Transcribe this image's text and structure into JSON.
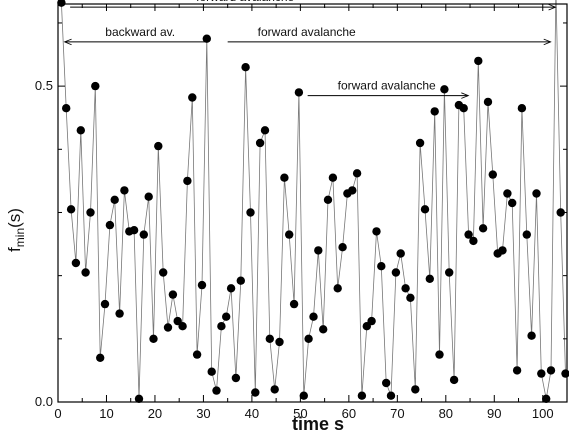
{
  "chart_data": {
    "type": "scatter",
    "connect_points": true,
    "xlabel": "time s",
    "ylabel_main": "f",
    "ylabel_sub": "min",
    "ylabel_rest": "(s)",
    "xlim": [
      0,
      105
    ],
    "ylim": [
      0.0,
      0.63
    ],
    "x_ticks": [
      0,
      10,
      20,
      30,
      40,
      50,
      60,
      70,
      80,
      90,
      100
    ],
    "x_tick_labels": [
      "0",
      "10",
      "20",
      "30",
      "40",
      "50",
      "60",
      "70",
      "80",
      "90",
      "100"
    ],
    "y_ticks": [
      0.0,
      0.5
    ],
    "y_tick_labels": [
      "0.0",
      "0.5"
    ],
    "grid": false,
    "series": [
      {
        "points": [
          [
            0.7,
            0.632
          ],
          [
            1.7,
            0.465
          ],
          [
            2.7,
            0.305
          ],
          [
            3.7,
            0.22
          ],
          [
            4.7,
            0.43
          ],
          [
            5.7,
            0.205
          ],
          [
            6.7,
            0.3
          ],
          [
            7.7,
            0.5
          ],
          [
            8.7,
            0.07
          ],
          [
            9.7,
            0.155
          ],
          [
            10.7,
            0.28
          ],
          [
            11.7,
            0.32
          ],
          [
            12.7,
            0.14
          ],
          [
            13.7,
            0.335
          ],
          [
            14.7,
            0.27
          ],
          [
            15.7,
            0.272
          ],
          [
            16.7,
            0.005
          ],
          [
            17.7,
            0.265
          ],
          [
            18.7,
            0.325
          ],
          [
            19.7,
            0.1
          ],
          [
            20.7,
            0.405
          ],
          [
            21.7,
            0.205
          ],
          [
            22.7,
            0.118
          ],
          [
            23.7,
            0.17
          ],
          [
            24.7,
            0.128
          ],
          [
            25.7,
            0.12
          ],
          [
            26.7,
            0.35
          ],
          [
            27.7,
            0.482
          ],
          [
            28.7,
            0.075
          ],
          [
            29.7,
            0.185
          ],
          [
            30.7,
            0.575
          ],
          [
            31.7,
            0.048
          ],
          [
            32.7,
            0.018
          ],
          [
            33.7,
            0.12
          ],
          [
            34.7,
            0.135
          ],
          [
            35.7,
            0.18
          ],
          [
            36.7,
            0.038
          ],
          [
            37.7,
            0.192
          ],
          [
            38.7,
            0.53
          ],
          [
            39.7,
            0.3
          ],
          [
            40.7,
            0.015
          ],
          [
            41.7,
            0.41
          ],
          [
            42.7,
            0.43
          ],
          [
            43.7,
            0.1
          ],
          [
            44.7,
            0.02
          ],
          [
            45.7,
            0.095
          ],
          [
            46.7,
            0.355
          ],
          [
            47.7,
            0.265
          ],
          [
            48.7,
            0.155
          ],
          [
            49.7,
            0.49
          ],
          [
            50.7,
            0.01
          ],
          [
            51.7,
            0.1
          ],
          [
            52.7,
            0.135
          ],
          [
            53.7,
            0.24
          ],
          [
            54.7,
            0.115
          ],
          [
            55.7,
            0.32
          ],
          [
            56.7,
            0.355
          ],
          [
            57.7,
            0.18
          ],
          [
            58.7,
            0.245
          ],
          [
            59.7,
            0.33
          ],
          [
            60.7,
            0.335
          ],
          [
            61.7,
            0.362
          ],
          [
            62.7,
            0.01
          ],
          [
            63.7,
            0.12
          ],
          [
            64.7,
            0.128
          ],
          [
            65.7,
            0.27
          ],
          [
            66.7,
            0.215
          ],
          [
            67.7,
            0.03
          ],
          [
            68.7,
            0.01
          ],
          [
            69.7,
            0.205
          ],
          [
            70.7,
            0.235
          ],
          [
            71.7,
            0.18
          ],
          [
            72.7,
            0.165
          ],
          [
            73.7,
            0.02
          ],
          [
            74.7,
            0.41
          ],
          [
            75.7,
            0.305
          ],
          [
            76.7,
            0.195
          ],
          [
            77.7,
            0.46
          ],
          [
            78.7,
            0.075
          ],
          [
            79.7,
            0.495
          ],
          [
            80.7,
            0.205
          ],
          [
            81.7,
            0.035
          ],
          [
            82.7,
            0.47
          ],
          [
            83.7,
            0.465
          ],
          [
            84.7,
            0.265
          ],
          [
            85.7,
            0.255
          ],
          [
            86.7,
            0.54
          ],
          [
            87.7,
            0.275
          ],
          [
            88.7,
            0.475
          ],
          [
            89.7,
            0.36
          ],
          [
            90.7,
            0.235
          ],
          [
            91.7,
            0.24
          ],
          [
            92.7,
            0.33
          ],
          [
            93.7,
            0.315
          ],
          [
            94.7,
            0.05
          ],
          [
            95.7,
            0.465
          ],
          [
            96.7,
            0.265
          ],
          [
            97.7,
            0.105
          ],
          [
            98.7,
            0.33
          ],
          [
            99.7,
            0.045
          ],
          [
            100.7,
            0.005
          ],
          [
            101.7,
            0.05
          ],
          [
            102.7,
            0.655
          ],
          [
            103.7,
            0.3
          ],
          [
            104.7,
            0.045
          ]
        ]
      }
    ],
    "annotations": [
      {
        "text": "forward avalanche",
        "x_start": 2.5,
        "x_end": 102.5,
        "y": 0.625,
        "direction": "right"
      },
      {
        "text": "backward av.",
        "x_start": 1.5,
        "x_end": 30.5,
        "y": 0.57,
        "direction": "left"
      },
      {
        "text": "forward avalanche",
        "x_start": 35,
        "x_end": 101.5,
        "y": 0.57,
        "direction": "right"
      },
      {
        "text": "forward avalanche",
        "x_start": 51.5,
        "x_end": 84.5,
        "y": 0.485,
        "direction": "right"
      }
    ],
    "colors": {
      "points": "#000000",
      "line": "#777777",
      "axes": "#000000"
    }
  }
}
